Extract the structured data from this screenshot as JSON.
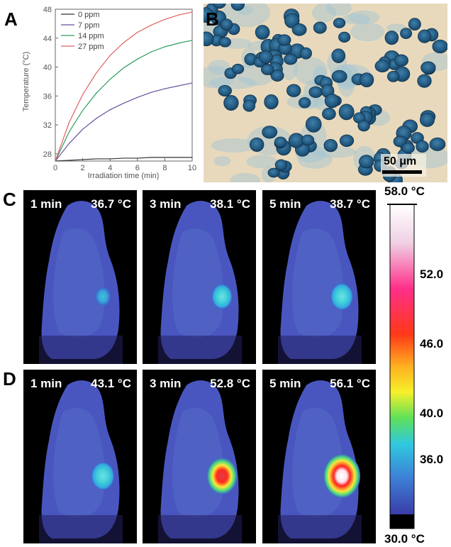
{
  "panel_labels": {
    "a": "A",
    "b": "B",
    "c": "C",
    "d": "D"
  },
  "chart_data": {
    "type": "line",
    "xlabel": "Irradiation time (min)",
    "ylabel": "Temperature (°C)",
    "xlim": [
      0,
      10
    ],
    "ylim": [
      27,
      48
    ],
    "xticks": [
      "0",
      "2",
      "4",
      "6",
      "8",
      "10"
    ],
    "yticks": [
      "28",
      "32",
      "36",
      "40",
      "44",
      "48"
    ],
    "legend_position": "top-left",
    "series": [
      {
        "name": "0 ppm",
        "color": "#333333",
        "x": [
          0,
          1,
          2,
          3,
          4,
          5,
          6,
          7,
          8,
          9,
          10
        ],
        "values": [
          27.0,
          27.1,
          27.2,
          27.3,
          27.3,
          27.4,
          27.4,
          27.5,
          27.5,
          27.5,
          27.5
        ]
      },
      {
        "name": "7 ppm",
        "color": "#6a4fa0",
        "x": [
          0,
          1,
          2,
          3,
          4,
          5,
          6,
          7,
          8,
          9,
          10
        ],
        "values": [
          27.0,
          29.4,
          31.4,
          32.9,
          34.1,
          35.0,
          35.8,
          36.5,
          37.0,
          37.4,
          37.8
        ]
      },
      {
        "name": "14 ppm",
        "color": "#2e9a62",
        "x": [
          0,
          1,
          2,
          3,
          4,
          5,
          6,
          7,
          8,
          9,
          10
        ],
        "values": [
          27.0,
          31.0,
          34.0,
          36.4,
          38.3,
          39.9,
          41.1,
          42.1,
          42.8,
          43.3,
          43.7
        ]
      },
      {
        "name": "27 ppm",
        "color": "#e0625e",
        "x": [
          0,
          1,
          2,
          3,
          4,
          5,
          6,
          7,
          8,
          9,
          10
        ],
        "values": [
          27.0,
          32.3,
          36.2,
          39.2,
          41.6,
          43.4,
          44.8,
          45.8,
          46.6,
          47.2,
          47.6
        ]
      }
    ]
  },
  "micrograph": {
    "scale_bar_label": "50 μm"
  },
  "thermal_rows": [
    {
      "panel": "C",
      "frames": [
        {
          "time": "1 min",
          "temp": "36.7 °C",
          "hotspot": 0.15
        },
        {
          "time": "3 min",
          "temp": "38.1 °C",
          "hotspot": 0.35
        },
        {
          "time": "5 min",
          "temp": "38.7 °C",
          "hotspot": 0.42
        }
      ]
    },
    {
      "panel": "D",
      "frames": [
        {
          "time": "1 min",
          "temp": "43.1 °C",
          "hotspot": 0.45
        },
        {
          "time": "3 min",
          "temp": "52.8 °C",
          "hotspot": 0.75
        },
        {
          "time": "5 min",
          "temp": "56.1 °C",
          "hotspot": 1.0
        }
      ]
    }
  ],
  "colorbar": {
    "max_label": "58.0 °C",
    "min_label": "30.0 °C",
    "ticks": [
      "52.0",
      "46.0",
      "40.0",
      "36.0"
    ],
    "tick_values": [
      52,
      46,
      40,
      36
    ],
    "range": [
      30,
      58
    ]
  }
}
